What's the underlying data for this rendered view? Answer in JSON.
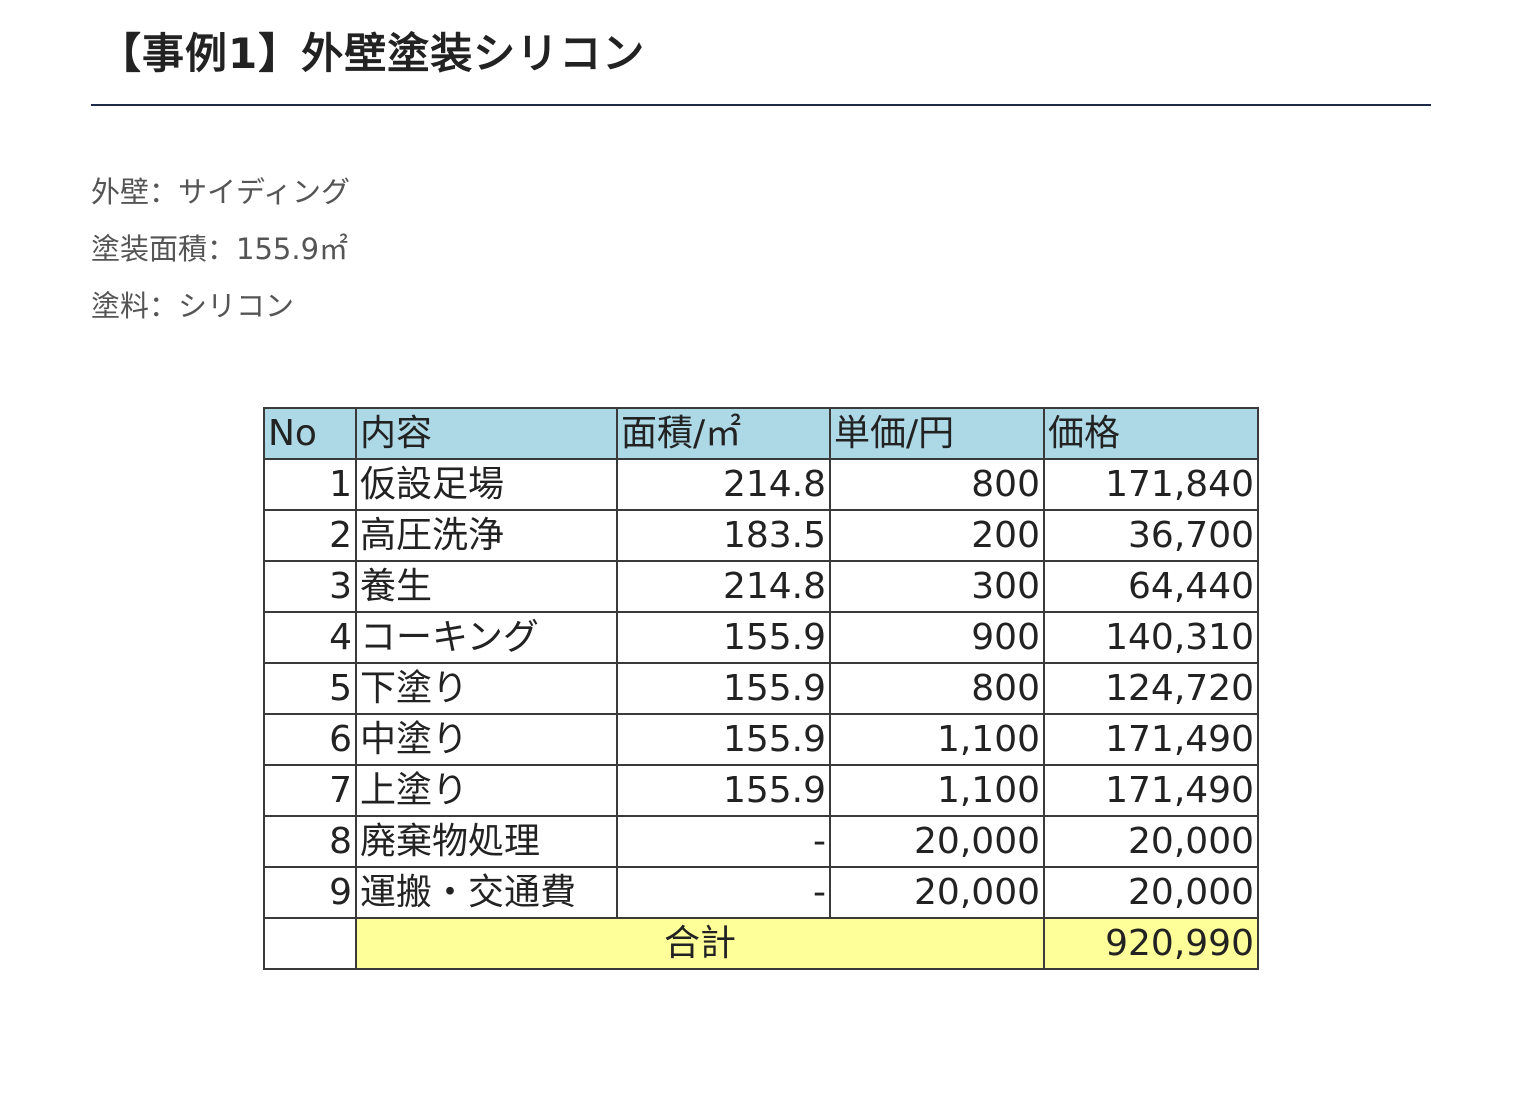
{
  "section": {
    "title": "【事例1】外壁塗装シリコン"
  },
  "specs": [
    "外壁：サイディング",
    "塗装面積：155.9㎡",
    "塗料：シリコン"
  ],
  "table": {
    "headers": [
      "No",
      "内容",
      "面積/㎡",
      "単価/円",
      "価格"
    ],
    "rows": [
      {
        "no": "1",
        "item": "仮設足場",
        "area": "214.8",
        "unit_price": "800",
        "price": "171,840"
      },
      {
        "no": "2",
        "item": "高圧洗浄",
        "area": "183.5",
        "unit_price": "200",
        "price": "36,700"
      },
      {
        "no": "3",
        "item": "養生",
        "area": "214.8",
        "unit_price": "300",
        "price": "64,440"
      },
      {
        "no": "4",
        "item": "コーキング",
        "area": "155.9",
        "unit_price": "900",
        "price": "140,310"
      },
      {
        "no": "5",
        "item": "下塗り",
        "area": "155.9",
        "unit_price": "800",
        "price": "124,720"
      },
      {
        "no": "6",
        "item": "中塗り",
        "area": "155.9",
        "unit_price": "1,100",
        "price": "171,490"
      },
      {
        "no": "7",
        "item": "上塗り",
        "area": "155.9",
        "unit_price": "1,100",
        "price": "171,490"
      },
      {
        "no": "8",
        "item": "廃棄物処理",
        "area": "-",
        "unit_price": "20,000",
        "price": "20,000"
      },
      {
        "no": "9",
        "item": "運搬・交通費",
        "area": "-",
        "unit_price": "20,000",
        "price": "20,000"
      }
    ],
    "total_label": "合計",
    "total_value": "920,990",
    "colors": {
      "header_bg": "#add8e6",
      "total_bg": "#ffff99"
    }
  }
}
